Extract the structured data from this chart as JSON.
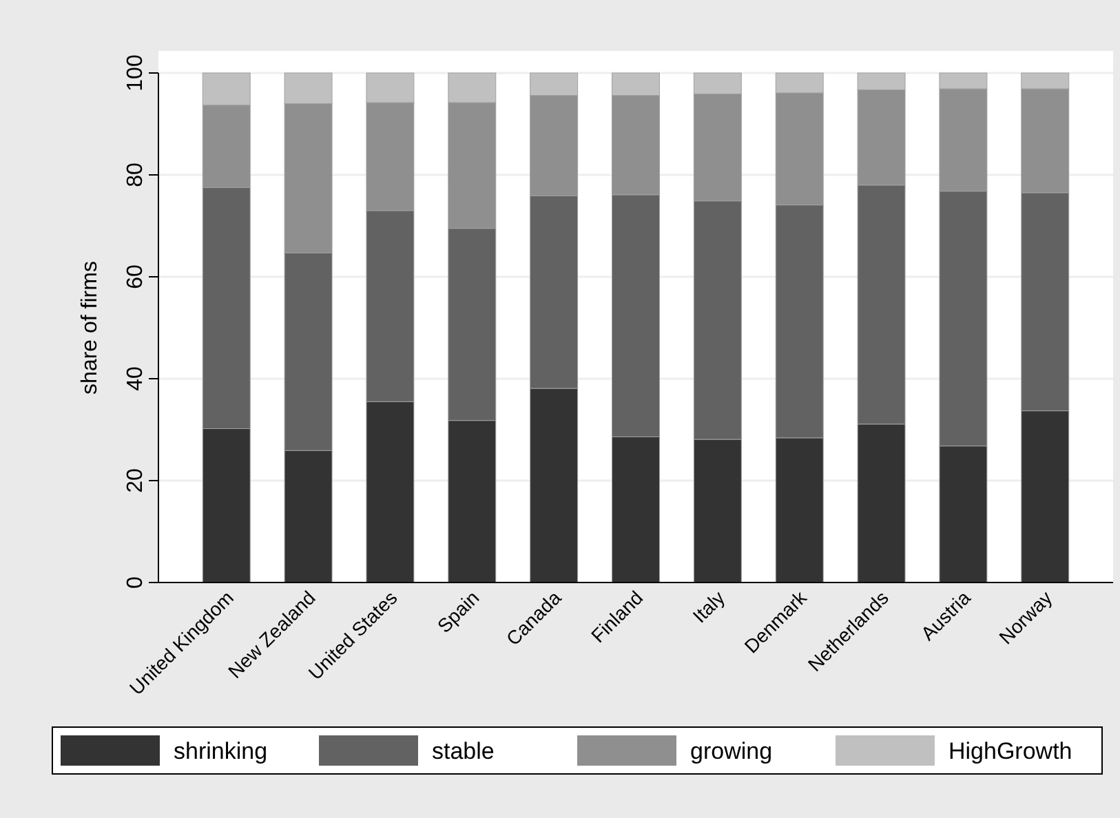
{
  "chart_data": {
    "type": "bar",
    "stacked": true,
    "ylabel": "share of firms",
    "categories": [
      "United Kingdom",
      "New Zealand",
      "United States",
      "Spain",
      "Canada",
      "Finland",
      "Italy",
      "Denmark",
      "Netherlands",
      "Austria",
      "Norway"
    ],
    "series": [
      {
        "name": "shrinking",
        "color": "#333333",
        "values": [
          30.2,
          25.9,
          35.5,
          31.8,
          38.1,
          28.6,
          28.1,
          28.4,
          31.1,
          26.8,
          33.7
        ]
      },
      {
        "name": "stable",
        "color": "#626262",
        "values": [
          47.3,
          38.8,
          37.5,
          37.7,
          37.8,
          47.5,
          46.8,
          45.7,
          46.9,
          50.0,
          42.8
        ]
      },
      {
        "name": "growing",
        "color": "#8f8f8f",
        "values": [
          16.2,
          29.3,
          21.2,
          24.7,
          19.7,
          19.5,
          21.0,
          22.0,
          18.7,
          20.1,
          20.4
        ]
      },
      {
        "name": "HighGrowth",
        "color": "#c0c0c0",
        "values": [
          6.3,
          6.0,
          5.8,
          5.8,
          4.4,
          4.4,
          4.1,
          3.9,
          3.3,
          3.1,
          3.1
        ]
      }
    ],
    "ylim": [
      0,
      100
    ],
    "yticks": [
      0,
      20,
      40,
      60,
      80,
      100
    ],
    "grid": "y",
    "legend": "bottom"
  }
}
